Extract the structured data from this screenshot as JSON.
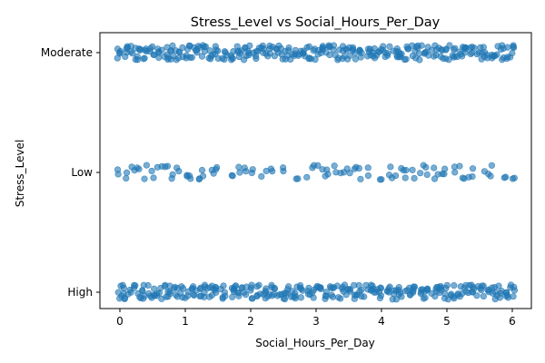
{
  "chart_data": {
    "type": "scatter",
    "title": "Stress_Level vs Social_Hours_Per_Day",
    "xlabel": "Social_Hours_Per_Day",
    "ylabel": "Stress_Level",
    "xlim": [
      -0.3,
      6.3
    ],
    "x_ticks": [
      0,
      1,
      2,
      3,
      4,
      5,
      6
    ],
    "categories": [
      "High",
      "Low",
      "Moderate"
    ],
    "grid": false,
    "point_color": "#1f77b4",
    "point_opacity": 0.6,
    "series": [
      {
        "category": "Moderate",
        "x": [
          0,
          0.1,
          0.2,
          0.3,
          0.4,
          0.5,
          0.6,
          0.7,
          0.8,
          0.9,
          1,
          1.1,
          1.2,
          1.3,
          1.4,
          1.5,
          1.6,
          1.7,
          1.8,
          1.9,
          2,
          2.1,
          2.2,
          2.3,
          2.4,
          2.5,
          2.6,
          2.7,
          2.8,
          2.9,
          3,
          3.1,
          3.2,
          3.3,
          3.4,
          3.5,
          3.6,
          3.7,
          3.8,
          3.9,
          4,
          4.1,
          4.2,
          4.3,
          4.4,
          4.5,
          4.6,
          4.7,
          4.8,
          4.9,
          5,
          5.1,
          5.2,
          5.3,
          5.4,
          5.5,
          5.6,
          5.7,
          5.8,
          5.9,
          6
        ]
      },
      {
        "category": "Low",
        "x": [
          0,
          0.1,
          0.2,
          0.3,
          0.4,
          0.5,
          0.6,
          0.7,
          0.8,
          0.9,
          1,
          1.1,
          1.2,
          1.3,
          1.4,
          1.5,
          1.7,
          1.8,
          1.9,
          2,
          2.2,
          2.3,
          2.5,
          2.7,
          2.9,
          3,
          3.1,
          3.2,
          3.3,
          3.4,
          3.5,
          3.6,
          3.7,
          3.8,
          4,
          4.1,
          4.2,
          4.3,
          4.4,
          4.5,
          4.6,
          4.7,
          4.8,
          4.9,
          5,
          5.1,
          5.2,
          5.3,
          5.4,
          5.6,
          5.7,
          5.9,
          6
        ]
      },
      {
        "category": "High",
        "x": [
          0,
          0.1,
          0.2,
          0.3,
          0.4,
          0.5,
          0.6,
          0.7,
          0.8,
          0.9,
          1,
          1.1,
          1.2,
          1.3,
          1.4,
          1.5,
          1.6,
          1.7,
          1.8,
          1.9,
          2,
          2.1,
          2.2,
          2.3,
          2.4,
          2.5,
          2.6,
          2.7,
          2.8,
          2.9,
          3,
          3.1,
          3.2,
          3.3,
          3.4,
          3.5,
          3.6,
          3.7,
          3.8,
          3.9,
          4,
          4.1,
          4.2,
          4.3,
          4.4,
          4.5,
          4.6,
          4.7,
          4.8,
          4.9,
          5,
          5.1,
          5.2,
          5.3,
          5.4,
          5.5,
          5.6,
          5.7,
          5.8,
          5.9,
          6
        ]
      }
    ]
  }
}
